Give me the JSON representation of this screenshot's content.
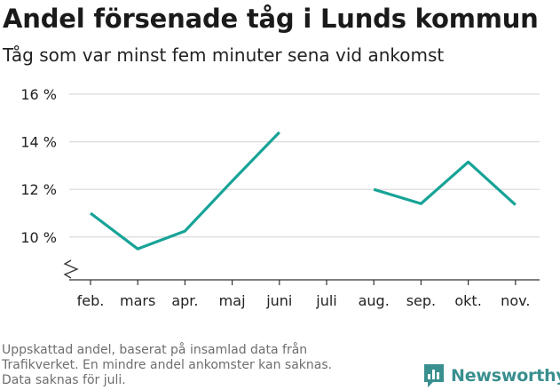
{
  "title": "Andel försenade tåg i Lunds kommun",
  "subtitle": "Tåg som var minst fem minuter sena vid ankomst",
  "footnote": {
    "line1": "Uppskattad andel, baserat på insamlad data från",
    "line2": "Trafikverket. En mindre andel ankomster kan saknas.",
    "line3": "Data saknas för juli."
  },
  "brand": {
    "name": "Newsworthy",
    "color": "#3a8f8f",
    "icon": "bar-chart-logo-icon"
  },
  "chart_data": {
    "type": "line",
    "categories": [
      "feb.",
      "mars",
      "apr.",
      "maj",
      "juni",
      "juli",
      "aug.",
      "sep.",
      "okt.",
      "nov."
    ],
    "series": [
      {
        "values": [
          11.0,
          9.5,
          10.25,
          12.35,
          14.4,
          null,
          12.0,
          11.4,
          13.15,
          11.35
        ],
        "color": "#17a397"
      }
    ],
    "yticks": [
      10,
      12,
      14,
      16
    ],
    "ytick_labels": [
      "10 %",
      "12 %",
      "14 %",
      "16 %"
    ],
    "ylim": [
      8.2,
      16
    ],
    "y_axis_break": true,
    "grid": true,
    "xlabel": "",
    "ylabel": ""
  }
}
